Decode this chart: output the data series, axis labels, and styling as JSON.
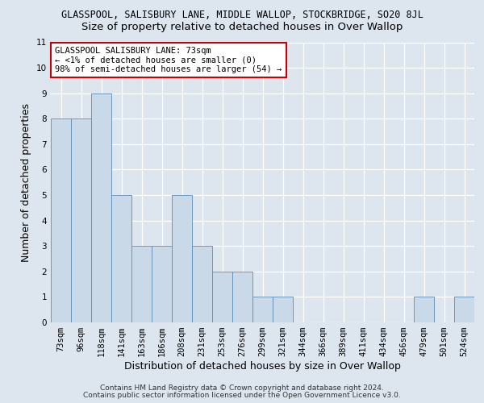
{
  "title_line1": "GLASSPOOL, SALISBURY LANE, MIDDLE WALLOP, STOCKBRIDGE, SO20 8JL",
  "title_line2": "Size of property relative to detached houses in Over Wallop",
  "xlabel": "Distribution of detached houses by size in Over Wallop",
  "ylabel": "Number of detached properties",
  "categories": [
    "73sqm",
    "96sqm",
    "118sqm",
    "141sqm",
    "163sqm",
    "186sqm",
    "208sqm",
    "231sqm",
    "253sqm",
    "276sqm",
    "299sqm",
    "321sqm",
    "344sqm",
    "366sqm",
    "389sqm",
    "411sqm",
    "434sqm",
    "456sqm",
    "479sqm",
    "501sqm",
    "524sqm"
  ],
  "values": [
    8,
    8,
    9,
    5,
    3,
    3,
    5,
    3,
    2,
    2,
    1,
    1,
    0,
    0,
    0,
    0,
    0,
    0,
    1,
    0,
    1
  ],
  "bar_color": "#c9d9e8",
  "bar_edgecolor": "#5b8db8",
  "annotation_box_text": "GLASSPOOL SALISBURY LANE: 73sqm\n← <1% of detached houses are smaller (0)\n98% of semi-detached houses are larger (54) →",
  "annotation_box_color": "#ffffff",
  "annotation_box_edgecolor": "#cc0000",
  "ylim": [
    0,
    11
  ],
  "yticks": [
    0,
    1,
    2,
    3,
    4,
    5,
    6,
    7,
    8,
    9,
    10,
    11
  ],
  "footer_line1": "Contains HM Land Registry data © Crown copyright and database right 2024.",
  "footer_line2": "Contains public sector information licensed under the Open Government Licence v3.0.",
  "background_color": "#dde5ef",
  "plot_background_color": "#dde5ef",
  "grid_color": "#ffffff",
  "title_fontsize": 8.5,
  "subtitle_fontsize": 9.5,
  "axis_label_fontsize": 9,
  "tick_fontsize": 7.5,
  "annotation_fontsize": 7.5,
  "footer_fontsize": 6.5
}
